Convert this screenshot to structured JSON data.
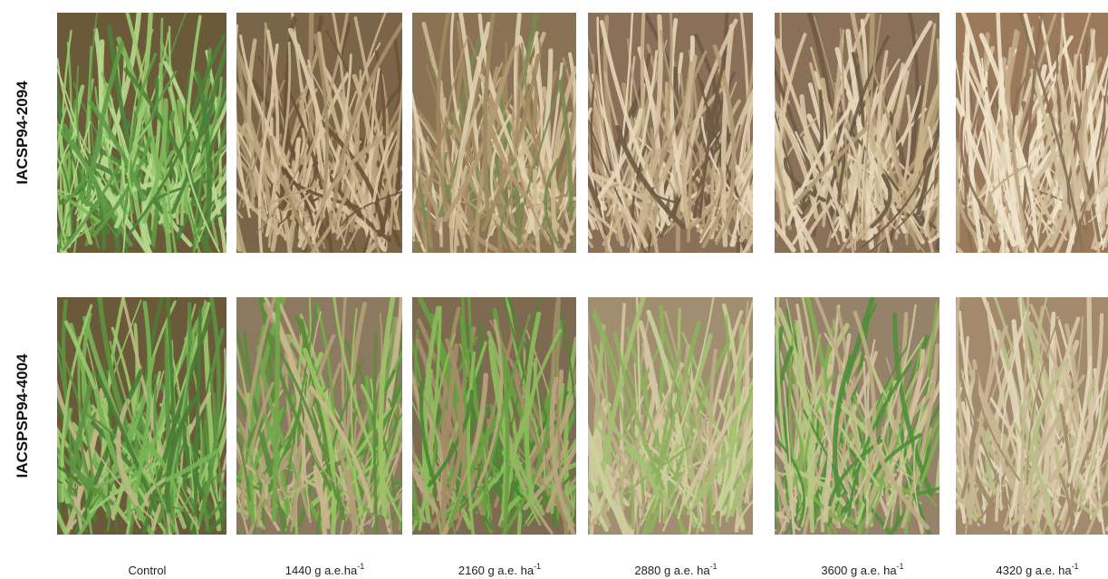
{
  "rows": [
    {
      "label": "IACSP94-2094"
    },
    {
      "label": "IACSPSP94-4004"
    }
  ],
  "columns": [
    {
      "label": "Control"
    },
    {
      "label": "1440 g a.e.ha",
      "sup": "-1"
    },
    {
      "label": "2160 g a.e. ha",
      "sup": "-1"
    },
    {
      "label": "2880 g a.e. ha",
      "sup": "-1"
    },
    {
      "label": "3600 g a.e. ha",
      "sup": "-1"
    },
    {
      "label": "4320 g a.e. ha",
      "sup": "-1"
    }
  ]
}
